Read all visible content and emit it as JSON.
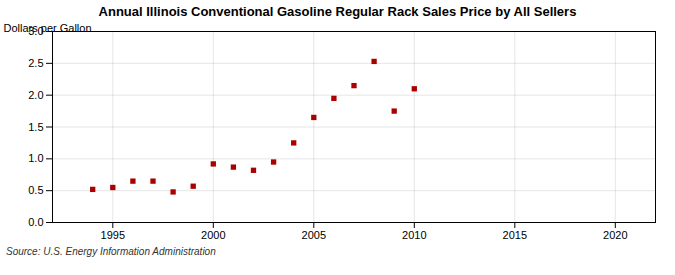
{
  "chart_data": {
    "type": "scatter",
    "title": "Annual Illinois Conventional Gasoline Regular Rack Sales Price by All Sellers",
    "ylabel": "Dollars per Gallon",
    "source": "Source: U.S. Energy Information Administration",
    "x": [
      1994,
      1995,
      1996,
      1997,
      1998,
      1999,
      2000,
      2001,
      2002,
      2003,
      2004,
      2005,
      2006,
      2007,
      2008,
      2009,
      2010
    ],
    "values": [
      0.52,
      0.55,
      0.65,
      0.65,
      0.48,
      0.57,
      0.92,
      0.87,
      0.82,
      0.95,
      1.25,
      1.65,
      1.95,
      2.15,
      2.53,
      1.75,
      2.1
    ],
    "color": "#aa0000",
    "marker": "square",
    "xlim": [
      1992,
      2022
    ],
    "ylim": [
      0.0,
      3.0
    ],
    "xticks": [
      1995,
      2000,
      2005,
      2010,
      2015,
      2020
    ],
    "yticks": [
      {
        "value": 0.0,
        "label": "0.0"
      },
      0.5,
      {
        "value": 1.0,
        "label": "1.0"
      },
      1.5,
      {
        "value": 2.0,
        "label": "2.0"
      },
      2.5,
      {
        "value": 3.0,
        "label": "3.0"
      }
    ],
    "grid": true
  }
}
